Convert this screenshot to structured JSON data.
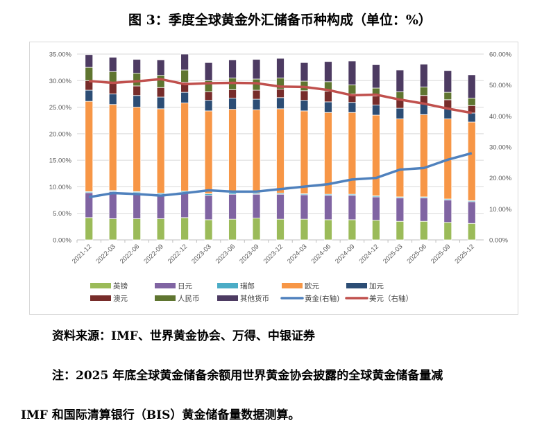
{
  "title": "图 3：季度全球黄金外汇储备币种构成（单位：%）",
  "source": "资料来源：IMF、世界黄金协会、万得、中银证券",
  "note_line1": "注：2025 年底全球黄金储备余额用世界黄金协会披露的全球黄金储备量减",
  "note_line2": "IMF 和国际清算银行（BIS）黄金储备量数据测算。",
  "chart_data": {
    "type": "bar",
    "stacked": true,
    "grid": true,
    "legend_position": "bottom",
    "categories": [
      "2021-12",
      "2022-03",
      "2022-06",
      "2022-09",
      "2022-12",
      "2023-03",
      "2023-06",
      "2023-09",
      "2023-12",
      "2024-03",
      "2024-06",
      "2024-09",
      "2024-12",
      "2025-03",
      "2025-06",
      "2025-09",
      "2025-12"
    ],
    "left_axis": {
      "ylim": [
        0,
        35
      ],
      "ticks": [
        "0.00%",
        "5.00%",
        "10.00%",
        "15.00%",
        "20.00%",
        "25.00%",
        "30.00%",
        "35.00%"
      ]
    },
    "right_axis": {
      "ylim": [
        0,
        60
      ],
      "ticks": [
        "0.00%",
        "10.00%",
        "20.00%",
        "30.00%",
        "40.00%",
        "50.00%",
        "60.00%"
      ]
    },
    "series": [
      {
        "name": "英镑",
        "type": "bar",
        "axis": "left",
        "color": "#9bbb59",
        "values": [
          4.2,
          4.0,
          4.0,
          4.0,
          4.2,
          3.8,
          3.9,
          4.1,
          3.9,
          3.9,
          3.8,
          3.8,
          3.7,
          3.5,
          3.5,
          3.3,
          3.1
        ]
      },
      {
        "name": "日元",
        "type": "bar",
        "axis": "left",
        "color": "#8064a2",
        "values": [
          4.7,
          5.1,
          4.9,
          4.6,
          4.8,
          4.6,
          4.7,
          4.5,
          4.7,
          4.6,
          4.6,
          4.6,
          4.4,
          4.4,
          4.4,
          4.2,
          4.1
        ]
      },
      {
        "name": "瑞郎",
        "type": "bar",
        "axis": "left",
        "color": "#4bacc6",
        "values": [
          0.2,
          0.2,
          0.2,
          0.2,
          0.2,
          0.3,
          0.3,
          0.2,
          0.2,
          0.2,
          0.2,
          0.2,
          0.2,
          0.2,
          0.2,
          0.2,
          0.2
        ]
      },
      {
        "name": "欧元",
        "type": "bar",
        "axis": "left",
        "color": "#f79646",
        "values": [
          17.0,
          16.2,
          15.9,
          15.9,
          16.6,
          15.6,
          15.7,
          15.7,
          15.9,
          15.6,
          15.4,
          15.4,
          15.2,
          14.7,
          15.5,
          15.1,
          14.8
        ]
      },
      {
        "name": "加元",
        "type": "bar",
        "axis": "left",
        "color": "#2c4d75",
        "values": [
          2.1,
          2.0,
          2.2,
          2.2,
          2.0,
          2.0,
          2.1,
          2.0,
          2.1,
          2.0,
          2.0,
          1.9,
          1.9,
          2.0,
          2.0,
          1.9,
          1.7
        ]
      },
      {
        "name": "澳元",
        "type": "bar",
        "axis": "left",
        "color": "#772c2a",
        "values": [
          1.8,
          2.0,
          1.8,
          1.8,
          1.9,
          1.6,
          1.6,
          1.7,
          1.6,
          1.8,
          2.0,
          1.6,
          1.7,
          1.6,
          1.6,
          1.7,
          1.4
        ]
      },
      {
        "name": "人民币",
        "type": "bar",
        "axis": "left",
        "color": "#5f7530",
        "values": [
          2.5,
          2.2,
          2.4,
          2.3,
          2.3,
          2.1,
          2.2,
          2.1,
          2.1,
          1.8,
          1.8,
          1.7,
          1.5,
          1.5,
          1.6,
          1.4,
          1.4
        ]
      },
      {
        "name": "其他货币",
        "type": "bar",
        "axis": "left",
        "color": "#4d3b62",
        "values": [
          2.4,
          2.7,
          2.6,
          2.9,
          3.0,
          3.4,
          3.4,
          3.7,
          3.7,
          3.5,
          3.8,
          4.5,
          4.4,
          4.1,
          4.3,
          4.1,
          4.4
        ]
      },
      {
        "name": "黄金(右轴)",
        "type": "line",
        "axis": "right",
        "color": "#4f81bd",
        "values": [
          13.8,
          15.1,
          14.8,
          14.3,
          15.1,
          16.0,
          15.6,
          15.6,
          16.4,
          17.2,
          18.0,
          19.5,
          20.0,
          22.7,
          23.2,
          25.9,
          28.0
        ]
      },
      {
        "name": "美元（右轴）",
        "type": "line",
        "axis": "right",
        "color": "#c0504d",
        "values": [
          51.3,
          50.7,
          51.2,
          51.9,
          50.3,
          50.6,
          50.7,
          50.6,
          49.5,
          49.4,
          48.4,
          46.7,
          46.9,
          45.3,
          44.0,
          42.4,
          41.0
        ]
      }
    ]
  }
}
